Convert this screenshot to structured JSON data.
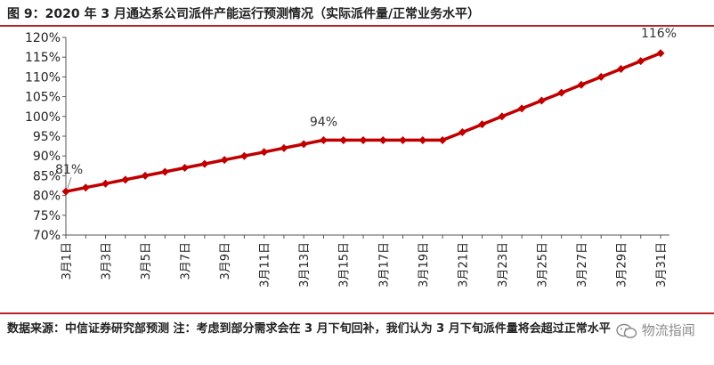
{
  "title": "图 9：2020 年 3 月通达系公司派件产能运行预测情况（实际派件量/正常业务水平）",
  "footer": "数据来源：中信证券研究部预测  注：考虑到部分需求会在 3 月下旬回补，我们认为 3 月下旬派件量将会超过正常水平",
  "watermark": "物流指闻",
  "colors": {
    "accent": "#b4232b",
    "line": "#c00000",
    "marker": "#c00000"
  },
  "chart_data": {
    "type": "line",
    "title": "",
    "xlabel": "",
    "ylabel": "",
    "ylim": [
      70,
      120
    ],
    "ytick_step": 5,
    "y_tick_labels": [
      "70%",
      "75%",
      "80%",
      "85%",
      "90%",
      "95%",
      "100%",
      "105%",
      "110%",
      "115%",
      "120%"
    ],
    "grid": false,
    "legend": "none",
    "categories": [
      "3月1日",
      "3月2日",
      "3月3日",
      "3月4日",
      "3月5日",
      "3月6日",
      "3月7日",
      "3月8日",
      "3月9日",
      "3月10日",
      "3月11日",
      "3月12日",
      "3月13日",
      "3月14日",
      "3月15日",
      "3月16日",
      "3月17日",
      "3月18日",
      "3月19日",
      "3月20日",
      "3月21日",
      "3月22日",
      "3月23日",
      "3月24日",
      "3月25日",
      "3月26日",
      "3月27日",
      "3月28日",
      "3月29日",
      "3月30日",
      "3月31日"
    ],
    "x_tick_labels": [
      "3月1日",
      "3月3日",
      "3月5日",
      "3月7日",
      "3月9日",
      "3月11日",
      "3月13日",
      "3月15日",
      "3月17日",
      "3月19日",
      "3月21日",
      "3月23日",
      "3月25日",
      "3月27日",
      "3月29日",
      "3月31日"
    ],
    "series": [
      {
        "values": [
          81,
          82,
          83,
          84,
          85,
          86,
          87,
          88,
          89,
          90,
          91,
          92,
          93,
          94,
          94,
          94,
          94,
          94,
          94,
          94,
          96,
          98,
          100,
          102,
          104,
          106,
          108,
          110,
          112,
          114,
          116
        ]
      }
    ],
    "annotations": [
      {
        "category": "3月1日",
        "text": "81%"
      },
      {
        "category": "3月14日",
        "text": "94%"
      },
      {
        "category": "3月31日",
        "text": "116%"
      }
    ]
  }
}
